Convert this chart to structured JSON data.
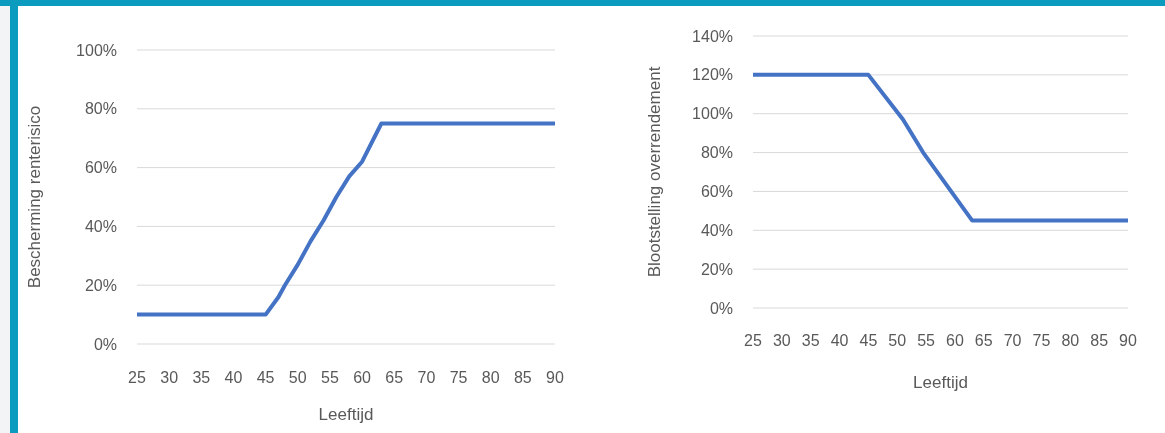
{
  "chart_data": [
    {
      "type": "line",
      "xlabel": "Leeftijd",
      "ylabel": "Bescherming renterisico",
      "xlim": [
        25,
        90
      ],
      "xticks": [
        25,
        30,
        35,
        40,
        45,
        50,
        55,
        60,
        65,
        70,
        75,
        80,
        85,
        90
      ],
      "ylim": [
        0,
        1
      ],
      "yticks": [
        {
          "value": 0,
          "label": "0%"
        },
        {
          "value": 0.2,
          "label": "20%"
        },
        {
          "value": 0.4,
          "label": "40%"
        },
        {
          "value": 0.6,
          "label": "60%"
        },
        {
          "value": 0.8,
          "label": "80%"
        },
        {
          "value": 1,
          "label": "100%"
        }
      ],
      "grid": "y",
      "series": [
        {
          "color": "#4472c4",
          "x": [
            25,
            45,
            47,
            48,
            50,
            52,
            54,
            56,
            58,
            60,
            63,
            90
          ],
          "values": [
            0.1,
            0.1,
            0.16,
            0.2,
            0.27,
            0.35,
            0.42,
            0.5,
            0.57,
            0.62,
            0.75,
            0.75
          ]
        }
      ]
    },
    {
      "type": "line",
      "xlabel": "Leeftijd",
      "ylabel": "Blootstelling overrendement",
      "xlim": [
        25,
        90
      ],
      "xticks": [
        25,
        30,
        35,
        40,
        45,
        50,
        55,
        60,
        65,
        70,
        75,
        80,
        85,
        90
      ],
      "ylim": [
        0,
        1.4
      ],
      "yticks": [
        {
          "value": 0,
          "label": "0%"
        },
        {
          "value": 0.2,
          "label": "20%"
        },
        {
          "value": 0.4,
          "label": "40%"
        },
        {
          "value": 0.6,
          "label": "60%"
        },
        {
          "value": 0.8,
          "label": "80%"
        },
        {
          "value": 1,
          "label": "100%"
        },
        {
          "value": 1.2,
          "label": "120%"
        },
        {
          "value": 1.4,
          "label": "140%"
        }
      ],
      "grid": "y",
      "series": [
        {
          "color": "#4472c4",
          "x": [
            25,
            45,
            51,
            54.5,
            63,
            90
          ],
          "values": [
            1.2,
            1.2,
            0.97,
            0.8,
            0.45,
            0.45
          ]
        }
      ]
    }
  ]
}
